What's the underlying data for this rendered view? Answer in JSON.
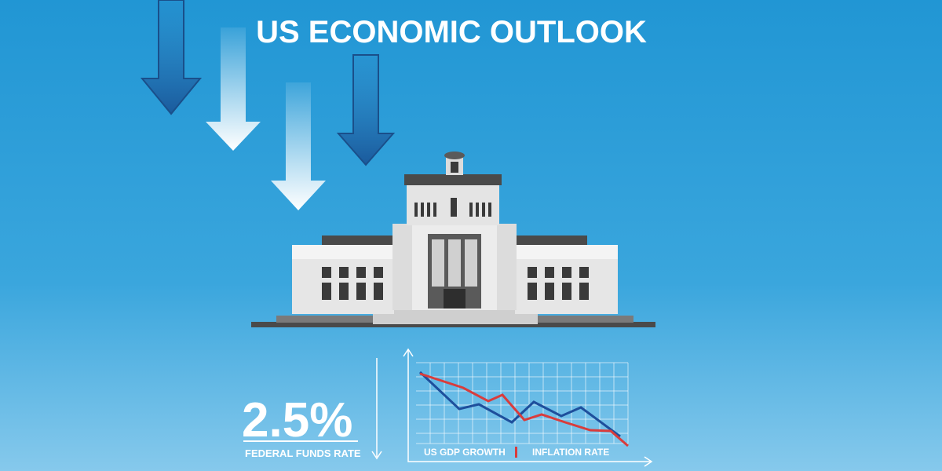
{
  "header": {
    "title": "US ECONOMIC OUTLOOK"
  },
  "stat": {
    "value": "2.5%",
    "label": "FEDERAL FUNDS RATE"
  },
  "chart_legend": {
    "items": [
      "US GDP GROWTH",
      "INFLATION RATE"
    ]
  }
}
